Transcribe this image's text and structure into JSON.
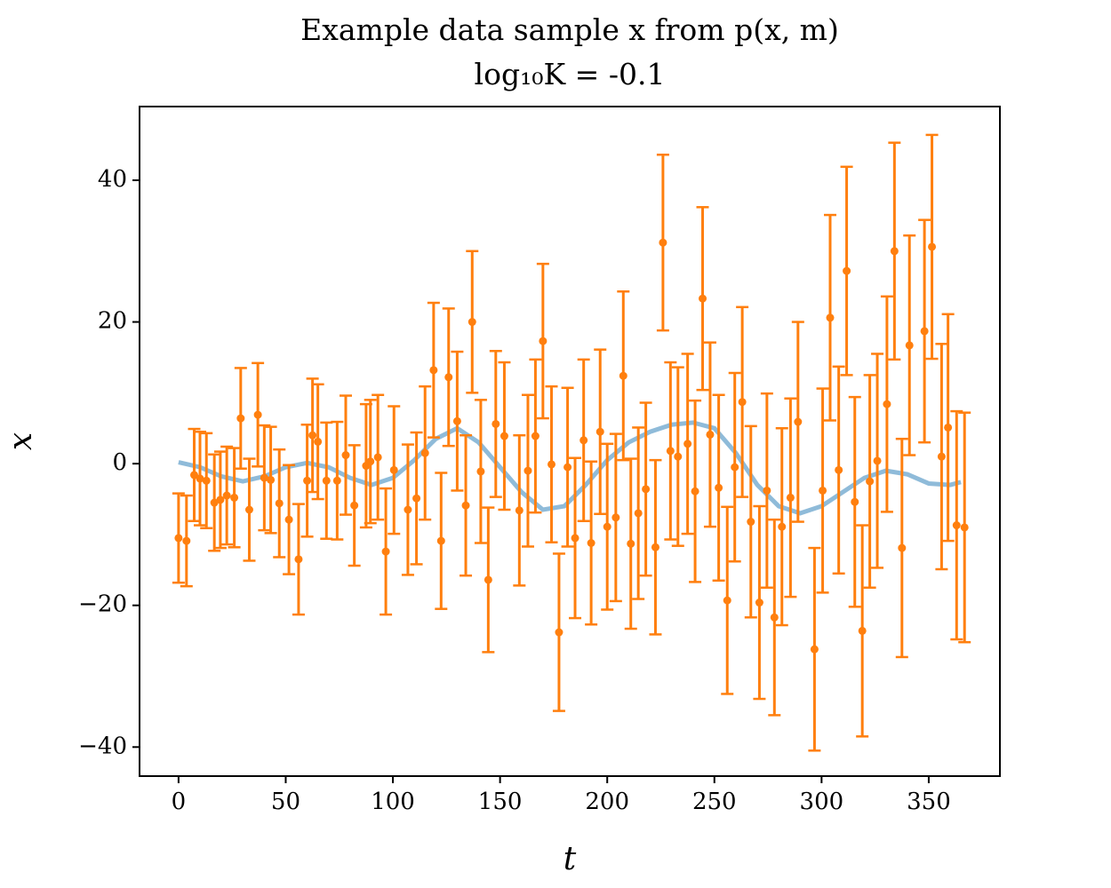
{
  "chart_data": {
    "type": "errorbar",
    "title": "Example data sample x from p(x, m)",
    "subtitle": "log₁₀K = -0.1",
    "xlabel": "t",
    "ylabel": "x",
    "xlim": [
      -18.2,
      383.2
    ],
    "ylim": [
      -44.1,
      50.4
    ],
    "xticks": [
      0,
      50,
      100,
      150,
      200,
      250,
      300,
      350
    ],
    "yticks": [
      {
        "value": -40,
        "label": "−40"
      },
      {
        "value": -20,
        "label": "−20"
      },
      0,
      20,
      40
    ],
    "series": [
      {
        "type": "line",
        "color": "#1f77b4",
        "x": [
          0,
          10,
          20,
          30,
          40,
          50,
          60,
          70,
          80,
          90,
          100,
          110,
          120,
          130,
          140,
          150,
          160,
          170,
          180,
          190,
          200,
          210,
          220,
          230,
          240,
          250,
          260,
          270,
          280,
          290,
          300,
          310,
          320,
          330,
          340,
          350,
          360,
          365
        ],
        "values": [
          0.2,
          -0.5,
          -1.8,
          -2.5,
          -1.8,
          -0.5,
          0.1,
          -0.5,
          -2,
          -3,
          -2,
          0.5,
          3.5,
          5,
          3,
          -0.5,
          -4,
          -6.5,
          -6,
          -3,
          0.5,
          3,
          4.5,
          5.5,
          5.8,
          5,
          1.5,
          -3,
          -6,
          -7,
          -6,
          -4,
          -2,
          -1,
          -1.5,
          -2.8,
          -3,
          -2.6
        ]
      },
      {
        "type": "errorbar",
        "color": "#ff7f0e",
        "x": [
          0,
          3.7,
          7.3,
          10,
          13,
          16.7,
          19.5,
          22.5,
          26,
          29,
          33,
          37,
          40,
          43,
          47,
          51.5,
          56,
          60,
          62.5,
          65,
          69,
          74,
          78,
          82,
          87.5,
          89.5,
          93,
          96.7,
          100.5,
          107,
          111,
          115,
          119,
          122.5,
          126,
          130,
          134,
          137,
          141,
          144.5,
          148,
          152,
          159,
          163,
          166.5,
          170,
          174,
          177.5,
          181.5,
          185,
          189,
          192.5,
          196.7,
          200,
          204,
          207.5,
          211,
          214.5,
          218,
          222.5,
          226,
          229.5,
          233,
          237.5,
          241,
          244.5,
          248,
          252,
          256,
          259.5,
          263,
          267,
          271,
          274.5,
          278,
          281.5,
          285.5,
          289,
          296.7,
          300.5,
          304,
          308,
          311.7,
          315.5,
          319,
          322.5,
          326,
          330.5,
          334,
          337.5,
          341,
          348,
          351.5,
          356,
          359,
          363,
          366.7
        ],
        "values": [
          -10.5,
          -10.9,
          -1.6,
          -2.1,
          -2.4,
          -5.5,
          -5.1,
          -4.5,
          -4.8,
          6.4,
          -6.5,
          6.9,
          -2,
          -2.3,
          -5.6,
          -7.9,
          -13.5,
          -2.4,
          4,
          3.1,
          -2.4,
          -2.4,
          1.2,
          -5.9,
          -0.3,
          0.3,
          0.9,
          -12.4,
          -0.9,
          -6.5,
          -4.9,
          1.5,
          13.2,
          -10.9,
          12.2,
          6,
          -5.9,
          20,
          -1.1,
          -16.4,
          5.6,
          3.9,
          -6.6,
          -1,
          3.9,
          17.3,
          -0.1,
          -23.8,
          -0.5,
          -10.5,
          3.3,
          -11.2,
          4.5,
          -8.9,
          -7.6,
          12.4,
          -11.3,
          -7,
          -3.6,
          -11.8,
          31.2,
          1.8,
          1,
          2.8,
          -3.9,
          23.3,
          4.1,
          -3.4,
          -19.3,
          -0.5,
          8.7,
          -8.2,
          -19.6,
          -3.8,
          -21.7,
          -8.9,
          -4.8,
          5.9,
          -26.2,
          -3.8,
          20.6,
          -0.9,
          27.2,
          -5.4,
          -23.6,
          -2.5,
          0.4,
          8.4,
          30,
          -11.9,
          16.7,
          18.7,
          30.6,
          1,
          5.1,
          -8.7,
          -9
        ],
        "errors": [
          6.3,
          6.4,
          6.5,
          6.6,
          6.7,
          6.8,
          6.8,
          6.9,
          7.0,
          7.1,
          7.2,
          7.3,
          7.4,
          7.5,
          7.6,
          7.7,
          7.8,
          7.9,
          8.0,
          8.1,
          8.2,
          8.3,
          8.4,
          8.5,
          8.7,
          8.7,
          8.8,
          8.9,
          9.0,
          9.2,
          9.3,
          9.4,
          9.5,
          9.6,
          9.7,
          9.8,
          9.9,
          10.0,
          10.1,
          10.2,
          10.3,
          10.4,
          10.6,
          10.7,
          10.8,
          10.9,
          11.0,
          11.1,
          11.2,
          11.3,
          11.4,
          11.5,
          11.6,
          11.7,
          11.8,
          11.9,
          12.0,
          12.1,
          12.2,
          12.3,
          12.4,
          12.5,
          12.6,
          12.7,
          12.8,
          12.9,
          13.0,
          13.1,
          13.2,
          13.3,
          13.4,
          13.5,
          13.6,
          13.7,
          13.8,
          13.9,
          14.0,
          14.1,
          14.3,
          14.4,
          14.5,
          14.6,
          14.7,
          14.8,
          14.9,
          15.0,
          15.1,
          15.2,
          15.3,
          15.4,
          15.5,
          15.7,
          15.8,
          15.9,
          16.0,
          16.1,
          16.2
        ]
      }
    ]
  }
}
